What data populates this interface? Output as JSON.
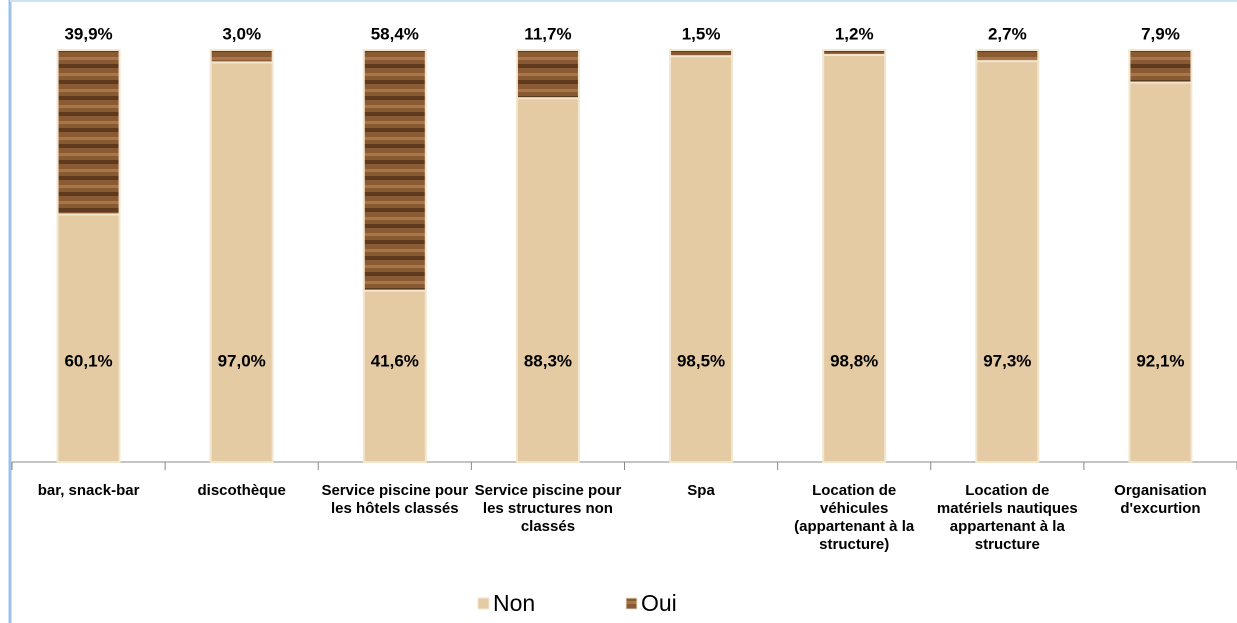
{
  "chart_data": {
    "type": "stacked_bar",
    "categories": [
      "bar, snack-bar",
      "discothèque",
      "Service piscine pour les hôtels classés",
      "Service piscine pour les structures non classés",
      "Spa",
      "Location de véhicules (appartenant à la structure)",
      "Location de matériels nautiques appartenant à la structure",
      "Organisation d'excurtion"
    ],
    "series": [
      {
        "name": "Non",
        "color": "#e4cba4",
        "values": [
          60.1,
          97.0,
          41.6,
          88.3,
          98.5,
          98.8,
          97.3,
          92.1
        ],
        "value_labels": [
          "60,1%",
          "97,0%",
          "41,6%",
          "88,3%",
          "98,5%",
          "98,8%",
          "97,3%",
          "92,1%"
        ]
      },
      {
        "name": "Oui",
        "color": "#8a5a33",
        "values": [
          39.9,
          3.0,
          58.4,
          11.7,
          1.5,
          1.2,
          2.7,
          7.9
        ],
        "value_labels": [
          "39,9%",
          "3,0%",
          "58,4%",
          "11,7%",
          "1,5%",
          "1,2%",
          "2,7%",
          "7,9%"
        ]
      }
    ],
    "legend": "bottom"
  }
}
